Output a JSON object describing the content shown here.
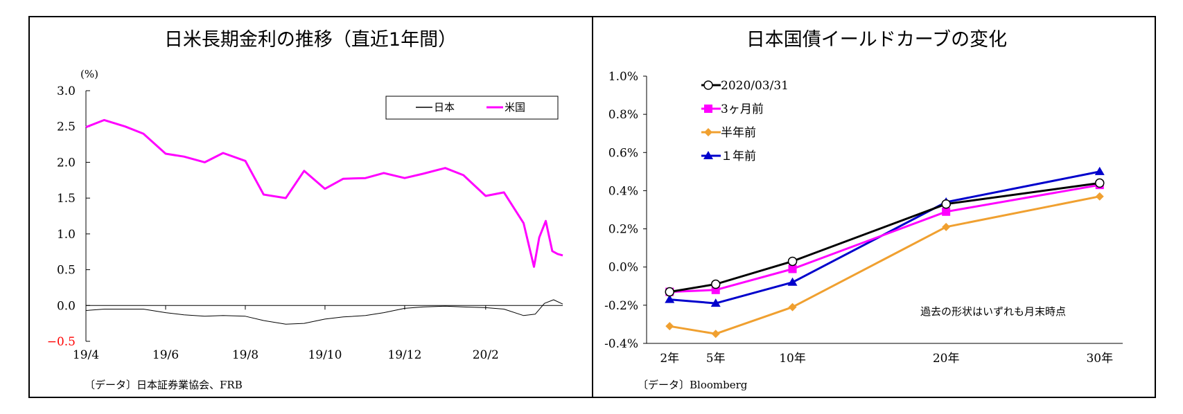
{
  "chart_data": [
    {
      "type": "line",
      "title": "日米長期金利の推移（直近1年間）",
      "ylabel": "(%)",
      "ylim": [
        -0.5,
        3.0
      ],
      "yticks": [
        "3.0",
        "2.5",
        "2.0",
        "1.5",
        "1.0",
        "0.5",
        "0.0",
        "−0.5"
      ],
      "xticks": [
        "19/4",
        "19/6",
        "19/8",
        "19/10",
        "19/12",
        "20/2"
      ],
      "x_range": [
        "2019/04/01",
        "2020/03/31"
      ],
      "grid": false,
      "legend_position": "top-right",
      "source": "〔データ〕日本証券業協会、FRB",
      "series": [
        {
          "name": "日本",
          "color": "#000000",
          "x": [
            "2019/04/01",
            "2019/04/15",
            "2019/05/01",
            "2019/05/15",
            "2019/06/01",
            "2019/06/15",
            "2019/07/01",
            "2019/07/15",
            "2019/08/01",
            "2019/08/15",
            "2019/09/01",
            "2019/09/15",
            "2019/10/01",
            "2019/10/15",
            "2019/11/01",
            "2019/11/15",
            "2019/12/01",
            "2019/12/15",
            "2020/01/01",
            "2020/01/15",
            "2020/02/01",
            "2020/02/15",
            "2020/03/01",
            "2020/03/10",
            "2020/03/17",
            "2020/03/24",
            "2020/03/31"
          ],
          "values": [
            -0.07,
            -0.05,
            -0.05,
            -0.05,
            -0.1,
            -0.13,
            -0.15,
            -0.14,
            -0.15,
            -0.21,
            -0.26,
            -0.25,
            -0.19,
            -0.16,
            -0.14,
            -0.1,
            -0.04,
            -0.02,
            -0.01,
            -0.02,
            -0.03,
            -0.05,
            -0.14,
            -0.12,
            0.03,
            0.08,
            0.02
          ]
        },
        {
          "name": "米国",
          "color": "#ff00ff",
          "x": [
            "2019/04/01",
            "2019/04/15",
            "2019/05/01",
            "2019/05/15",
            "2019/06/01",
            "2019/06/15",
            "2019/07/01",
            "2019/07/15",
            "2019/08/01",
            "2019/08/15",
            "2019/09/01",
            "2019/09/15",
            "2019/10/01",
            "2019/10/15",
            "2019/11/01",
            "2019/11/15",
            "2019/12/01",
            "2019/12/15",
            "2020/01/01",
            "2020/01/15",
            "2020/02/01",
            "2020/02/15",
            "2020/03/01",
            "2020/03/09",
            "2020/03/13",
            "2020/03/18",
            "2020/03/23",
            "2020/03/27",
            "2020/03/31"
          ],
          "values": [
            2.49,
            2.59,
            2.5,
            2.4,
            2.12,
            2.08,
            2.0,
            2.13,
            2.02,
            1.55,
            1.5,
            1.88,
            1.63,
            1.77,
            1.78,
            1.85,
            1.78,
            1.84,
            1.92,
            1.82,
            1.53,
            1.58,
            1.15,
            0.54,
            0.95,
            1.18,
            0.76,
            0.72,
            0.7
          ]
        }
      ]
    },
    {
      "type": "line",
      "title": "日本国債イールドカーブの変化",
      "ylim": [
        -0.4,
        1.0
      ],
      "yticks": [
        "1.0%",
        "0.8%",
        "0.6%",
        "0.4%",
        "0.2%",
        "0.0%",
        "-0.2%",
        "-0.4%"
      ],
      "categories": [
        "2年",
        "5年",
        "10年",
        "20年",
        "30年"
      ],
      "x": [
        2,
        5,
        10,
        20,
        30
      ],
      "grid": false,
      "legend_position": "top-left",
      "annotation": "過去の形状はいずれも月末時点",
      "source": "〔データ〕Bloomberg",
      "series": [
        {
          "name": "2020/03/31",
          "color": "#000000",
          "marker": "open-circle",
          "values": [
            -0.13,
            -0.09,
            0.03,
            0.33,
            0.44
          ]
        },
        {
          "name": "3ヶ月前",
          "color": "#ff00ff",
          "marker": "square",
          "values": [
            -0.13,
            -0.12,
            -0.01,
            0.29,
            0.43
          ]
        },
        {
          "name": "半年前",
          "color": "#f0a030",
          "marker": "diamond",
          "values": [
            -0.31,
            -0.35,
            -0.21,
            0.21,
            0.37
          ]
        },
        {
          "name": "１年前",
          "color": "#0000cc",
          "marker": "triangle",
          "values": [
            -0.17,
            -0.19,
            -0.08,
            0.34,
            0.5
          ]
        }
      ]
    }
  ]
}
